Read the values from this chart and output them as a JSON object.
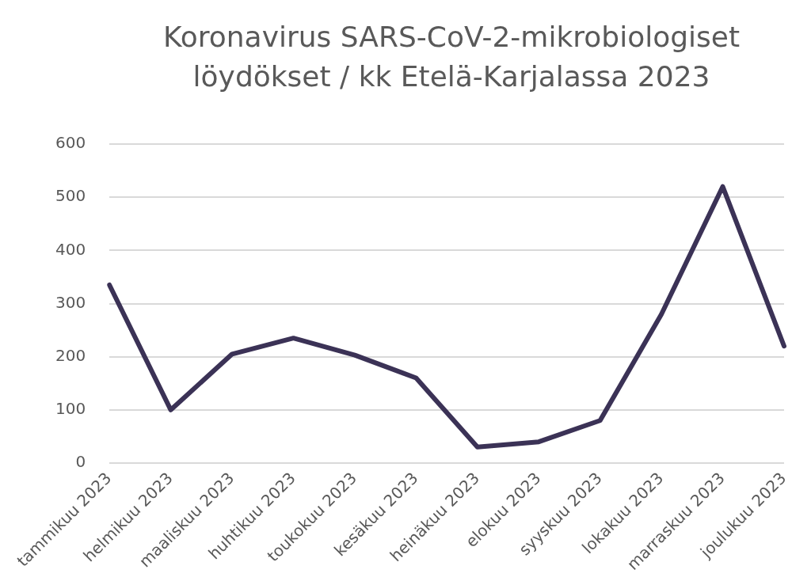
{
  "chart_data": {
    "type": "line",
    "title": "Koronavirus SARS-CoV-2-mikrobiologiset löydökset / kk Etelä-Karjalassa 2023",
    "categories": [
      "tammikuu 2023",
      "helmikuu 2023",
      "maaliskuu 2023",
      "huhtikuu 2023",
      "toukokuu 2023",
      "kesäkuu 2023",
      "heinäkuu 2023",
      "elokuu 2023",
      "syyskuu 2023",
      "lokakuu 2023",
      "marraskuu 2023",
      "joulukuu 2023"
    ],
    "series": [
      {
        "color": "#3b3256",
        "values": [
          335,
          100,
          205,
          235,
          203,
          160,
          30,
          40,
          80,
          280,
          520,
          220
        ]
      }
    ],
    "ylim": [
      0,
      600
    ],
    "yticks": [
      0,
      100,
      200,
      300,
      400,
      500,
      600
    ],
    "grid": "y",
    "legend": false,
    "marker": "none",
    "line_style": "solid"
  }
}
